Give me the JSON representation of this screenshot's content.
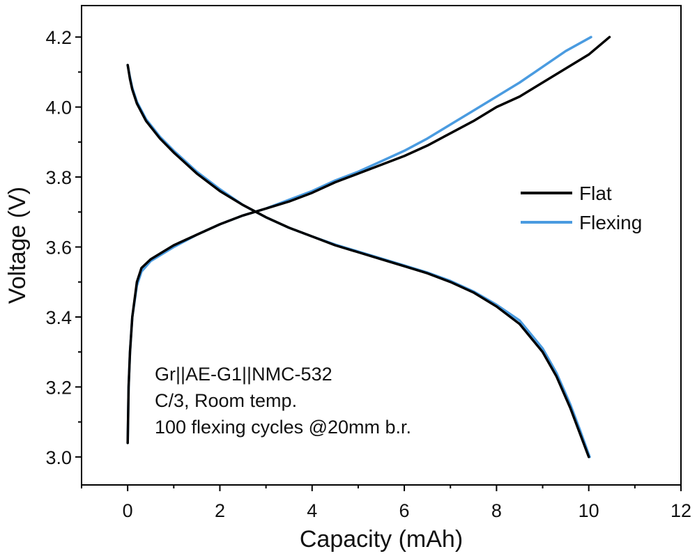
{
  "chart_data": {
    "type": "line",
    "title": "",
    "xlabel": "Capacity (mAh)",
    "ylabel": "Voltage (V)",
    "xlim": [
      -1,
      12
    ],
    "ylim": [
      2.92,
      4.29
    ],
    "xticks": [
      0,
      2,
      4,
      6,
      8,
      10,
      12
    ],
    "xtick_labels": [
      "0",
      "2",
      "4",
      "6",
      "8",
      "10",
      "12"
    ],
    "yticks": [
      3.0,
      3.2,
      3.4,
      3.6,
      3.8,
      4.0,
      4.2
    ],
    "ytick_labels": [
      "3.0",
      "3.2",
      "3.4",
      "3.6",
      "3.8",
      "4.0",
      "4.2"
    ],
    "grid": false,
    "legend_position": "right",
    "annotation_lines": [
      "Gr||AE-G1||NMC-532",
      "C/3, Room temp.",
      "100 flexing cycles @20mm b.r."
    ],
    "series": [
      {
        "name": "Flat",
        "color": "#000000",
        "charge": {
          "x": [
            0,
            0.02,
            0.05,
            0.1,
            0.2,
            0.3,
            0.5,
            1.0,
            1.5,
            2.0,
            2.5,
            3.0,
            3.5,
            4.0,
            4.5,
            5.0,
            5.5,
            6.0,
            6.5,
            7.0,
            7.5,
            8.0,
            8.5,
            9.0,
            9.5,
            10.0,
            10.45
          ],
          "y": [
            3.04,
            3.2,
            3.3,
            3.4,
            3.5,
            3.54,
            3.565,
            3.605,
            3.635,
            3.665,
            3.69,
            3.71,
            3.73,
            3.755,
            3.785,
            3.81,
            3.835,
            3.86,
            3.89,
            3.925,
            3.96,
            4.0,
            4.03,
            4.07,
            4.11,
            4.15,
            4.2
          ]
        },
        "discharge": {
          "x": [
            0,
            0.05,
            0.1,
            0.2,
            0.4,
            0.7,
            1.0,
            1.5,
            2.0,
            2.5,
            3.0,
            3.5,
            4.0,
            4.5,
            5.0,
            5.5,
            6.0,
            6.5,
            7.0,
            7.5,
            8.0,
            8.5,
            9.0,
            9.3,
            9.6,
            9.8,
            10.0
          ],
          "y": [
            4.12,
            4.08,
            4.05,
            4.01,
            3.96,
            3.91,
            3.87,
            3.81,
            3.76,
            3.72,
            3.685,
            3.655,
            3.63,
            3.605,
            3.585,
            3.565,
            3.545,
            3.525,
            3.5,
            3.47,
            3.43,
            3.38,
            3.3,
            3.23,
            3.14,
            3.07,
            3.0
          ]
        }
      },
      {
        "name": "Flexing",
        "color": "#4a9be0",
        "charge": {
          "x": [
            0,
            0.02,
            0.05,
            0.1,
            0.2,
            0.3,
            0.5,
            1.0,
            1.5,
            2.0,
            2.5,
            3.0,
            3.5,
            4.0,
            4.5,
            5.0,
            5.5,
            6.0,
            6.5,
            7.0,
            7.5,
            8.0,
            8.5,
            9.0,
            9.5,
            10.05
          ],
          "y": [
            3.04,
            3.2,
            3.3,
            3.4,
            3.49,
            3.53,
            3.56,
            3.6,
            3.635,
            3.665,
            3.69,
            3.71,
            3.735,
            3.76,
            3.79,
            3.815,
            3.845,
            3.875,
            3.91,
            3.95,
            3.99,
            4.03,
            4.07,
            4.115,
            4.16,
            4.2
          ]
        },
        "discharge": {
          "x": [
            0,
            0.05,
            0.1,
            0.2,
            0.4,
            0.7,
            1.0,
            1.5,
            2.0,
            2.5,
            3.0,
            3.5,
            4.0,
            4.5,
            5.0,
            5.5,
            6.0,
            6.5,
            7.0,
            7.5,
            8.0,
            8.5,
            9.0,
            9.3,
            9.6,
            9.8,
            10.02
          ],
          "y": [
            4.12,
            4.085,
            4.055,
            4.015,
            3.965,
            3.915,
            3.875,
            3.815,
            3.765,
            3.72,
            3.685,
            3.655,
            3.63,
            3.607,
            3.587,
            3.567,
            3.547,
            3.527,
            3.503,
            3.473,
            3.435,
            3.39,
            3.31,
            3.24,
            3.15,
            3.08,
            3.0
          ]
        }
      }
    ]
  }
}
